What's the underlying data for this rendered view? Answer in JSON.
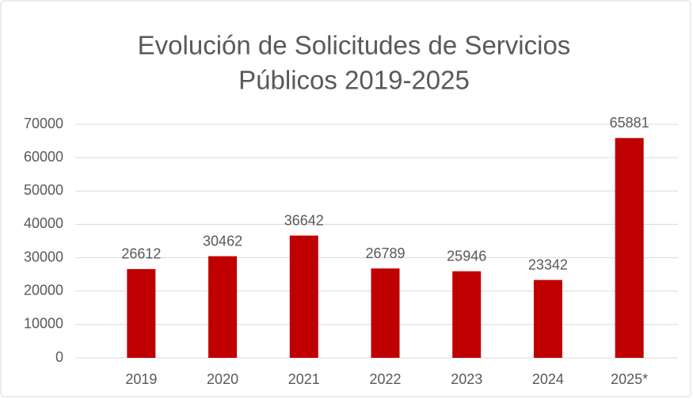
{
  "chart_data": {
    "type": "bar",
    "title": [
      "Evolución de Solicitudes de Servicios",
      "Públicos 2019-2025"
    ],
    "categories": [
      "2019",
      "2020",
      "2021",
      "2022",
      "2023",
      "2024",
      "2025*"
    ],
    "values": [
      26612,
      30462,
      36642,
      26789,
      25946,
      23342,
      65881
    ],
    "color": "#c00000",
    "ylim": [
      0,
      70000
    ],
    "yticks": [
      0,
      10000,
      20000,
      30000,
      40000,
      50000,
      60000,
      70000
    ],
    "grid": true
  }
}
